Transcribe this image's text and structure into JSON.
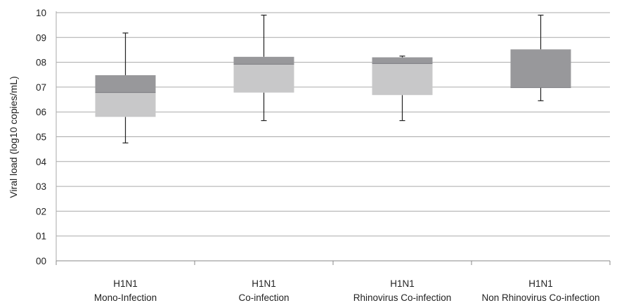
{
  "chart_data": {
    "type": "boxplot",
    "ylabel": "Viral load (log10 copies/mL)",
    "ylim": [
      0,
      10
    ],
    "yticks": [
      "00",
      "01",
      "02",
      "03",
      "04",
      "05",
      "06",
      "07",
      "08",
      "09",
      "10"
    ],
    "grid": true,
    "categories": [
      {
        "line1": "H1N1",
        "line2": "Mono-Infection"
      },
      {
        "line1": "H1N1",
        "line2": "Co-infection"
      },
      {
        "line1": "H1N1",
        "line2": "Rhinovirus Co-infection"
      },
      {
        "line1": "H1N1",
        "line2": "Non Rhinovirus Co-infection"
      }
    ],
    "boxes": [
      {
        "min": 4.75,
        "q1": 5.8,
        "median": 6.78,
        "q3": 7.48,
        "max": 9.18
      },
      {
        "min": 5.65,
        "q1": 6.78,
        "median": 7.92,
        "q3": 8.22,
        "max": 9.9
      },
      {
        "min": 5.65,
        "q1": 6.68,
        "median": 7.95,
        "q3": 8.2,
        "max": 8.25
      },
      {
        "min": 6.45,
        "q1": 6.98,
        "median": 6.98,
        "q3": 8.52,
        "max": 9.9
      }
    ],
    "colors": {
      "lower_box": "#c8c8c9",
      "upper_box": "#98989b",
      "grid": "#aaaaaa",
      "whisker": "#222222"
    }
  }
}
